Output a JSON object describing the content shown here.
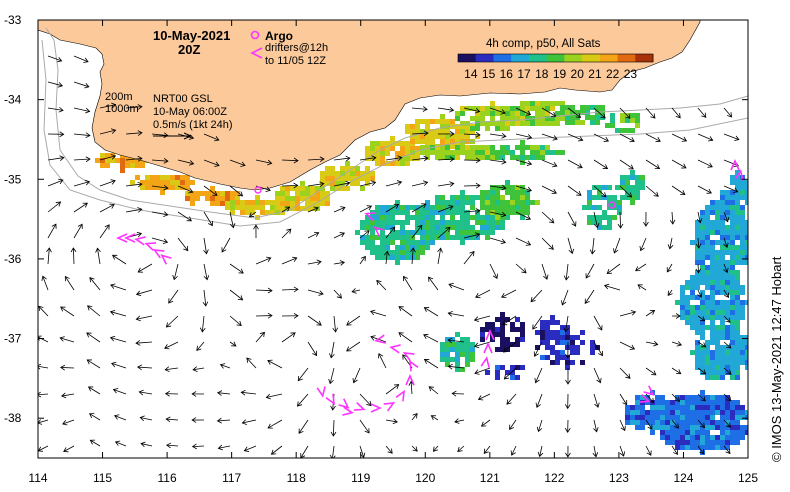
{
  "title": {
    "date": "10-May-2021",
    "hour": "20Z"
  },
  "legend": {
    "argo_label": "Argo",
    "drifters_label": "drifters@12h",
    "drifters_sub": "to 11/05 12Z"
  },
  "notes": {
    "contour_200": "200m",
    "contour_1000": "1000m",
    "product": "NRT00 GSL",
    "product_time": "10-May 06:00Z",
    "scale": "0.5m/s (1kt 24h)"
  },
  "colorbar": {
    "title": "4h comp, p50, All Sats",
    "ticks": [
      "14",
      "15",
      "16",
      "17",
      "18",
      "19",
      "20",
      "21",
      "22",
      "23"
    ],
    "colors": [
      "#1a1060",
      "#2a2cbf",
      "#1e6fe6",
      "#21a8d6",
      "#1fc08a",
      "#3fc33a",
      "#9ad21d",
      "#d9cb15",
      "#f3a515",
      "#e06a10",
      "#a83208"
    ]
  },
  "axes": {
    "x_ticks": [
      "114",
      "115",
      "116",
      "117",
      "118",
      "119",
      "120",
      "121",
      "122",
      "123",
      "124",
      "125"
    ],
    "y_ticks": [
      "-33",
      "-34",
      "-35",
      "-36",
      "-37",
      "-38"
    ],
    "lon_range": [
      114,
      125
    ],
    "lat_range": [
      -38.5,
      -33
    ]
  },
  "credit": "© IMOS 13-May-2021 12:47 Hobart",
  "colors": {
    "land": "#fcc99b",
    "ocean": "#ffffff",
    "argo": "#ff33ff",
    "drifter": "#ff33ff",
    "arrow": "#000000"
  }
}
